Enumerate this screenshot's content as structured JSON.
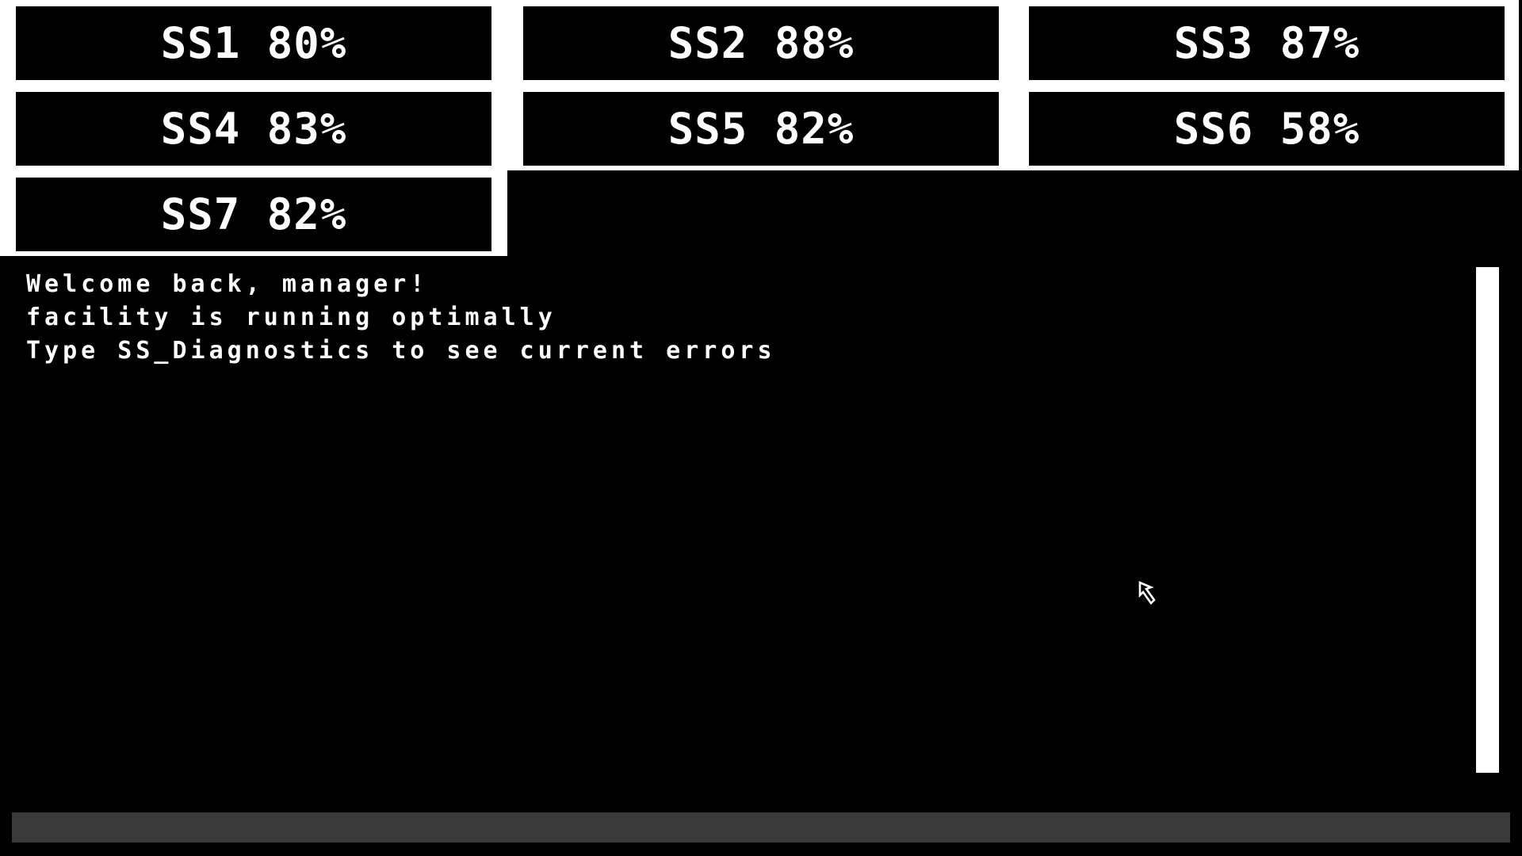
{
  "subsystems": [
    {
      "label": "SS1 80%"
    },
    {
      "label": "SS2 88%"
    },
    {
      "label": "SS3 87%"
    },
    {
      "label": "SS4 83%"
    },
    {
      "label": "SS5 82%"
    },
    {
      "label": "SS6 58%"
    },
    {
      "label": "SS7 82%"
    }
  ],
  "console": {
    "lines": [
      "Welcome back, manager!",
      "facility is running optimally",
      "Type SS_Diagnostics to see current errors"
    ]
  },
  "command_input": {
    "value": ""
  },
  "colors": {
    "background": "#000000",
    "panel": "#ffffff",
    "input_bar": "#3b3b3b"
  },
  "icons": {
    "cursor": "arrow-cursor-icon"
  }
}
